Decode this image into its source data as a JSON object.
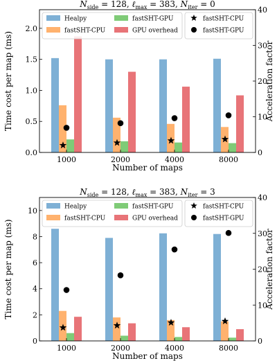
{
  "colors": {
    "Healpy": "#7eb0d5",
    "fastSHT-CPU": "#ffb26e",
    "fastSHT-GPU": "#7fcb77",
    "GPU overhead": "#e87478",
    "marker": "#000000"
  },
  "chart_data": [
    {
      "type": "bar",
      "title": "N_side = 128, ℓ_max = 383, N_iter = 0",
      "title_parts": {
        "n_side": "N",
        "n_side_sub": "side",
        "n_side_val": " = 128, ",
        "l": "ℓ",
        "l_sub": "max",
        "l_val": " = 383, ",
        "n_iter": "N",
        "n_iter_sub": "iter",
        "n_iter_val": " = 0"
      },
      "xlabel": "Number of maps",
      "ylabel": "Time cost per map (ms)",
      "ylabel_right": "Acceleration factor",
      "categories": [
        "1000",
        "2000",
        "4000",
        "8000"
      ],
      "ylim": [
        0,
        2.3
      ],
      "yticks": [
        "0.0",
        "0.5",
        "1.0",
        "1.5",
        "2.0"
      ],
      "ylim_right": [
        0,
        40
      ],
      "yticks_right": [
        "0",
        "10",
        "20",
        "30",
        "40"
      ],
      "series": [
        {
          "name": "Healpy",
          "values": [
            1.52,
            1.5,
            1.5,
            1.51
          ]
        },
        {
          "name": "fastSHT-CPU",
          "values": [
            0.76,
            0.56,
            0.46,
            0.41
          ]
        },
        {
          "name": "fastSHT-GPU",
          "values": [
            0.21,
            0.18,
            0.16,
            0.15
          ]
        },
        {
          "name": "GPU overhead",
          "values": [
            1.87,
            1.3,
            1.06,
            0.92
          ]
        }
      ],
      "markers": [
        {
          "name": "fastSHT-CPU",
          "symbol": "★",
          "values": [
            2.0,
            2.7,
            3.3,
            3.7
          ]
        },
        {
          "name": "fastSHT-GPU",
          "symbol": "●",
          "values": [
            6.9,
            8.2,
            9.6,
            10.4
          ]
        }
      ]
    },
    {
      "type": "bar",
      "title": "N_side = 128, ℓ_max = 383, N_iter = 3",
      "title_parts": {
        "n_side": "N",
        "n_side_sub": "side",
        "n_side_val": " = 128, ",
        "l": "ℓ",
        "l_sub": "max",
        "l_val": " = 383, ",
        "n_iter": "N",
        "n_iter_sub": "iter",
        "n_iter_val": " = 3"
      },
      "xlabel": "Number of maps",
      "ylabel": "Time cost per map (ms)",
      "ylabel_right": "Acceleration factor",
      "categories": [
        "1000",
        "2000",
        "4000",
        "8000"
      ],
      "ylim": [
        0,
        11
      ],
      "yticks": [
        "0",
        "2",
        "4",
        "6",
        "8",
        "10"
      ],
      "ylim_right": [
        0,
        40
      ],
      "yticks_right": [
        "0",
        "10",
        "20",
        "30",
        "40"
      ],
      "series": [
        {
          "name": "Healpy",
          "values": [
            8.6,
            7.9,
            8.25,
            8.2
          ]
        },
        {
          "name": "fastSHT-CPU",
          "values": [
            2.3,
            1.8,
            1.6,
            1.5
          ]
        },
        {
          "name": "fastSHT-GPU",
          "values": [
            0.6,
            0.4,
            0.3,
            0.25
          ]
        },
        {
          "name": "GPU overhead",
          "values": [
            1.85,
            1.35,
            1.05,
            0.9
          ]
        }
      ],
      "markers": [
        {
          "name": "fastSHT-CPU",
          "symbol": "★",
          "values": [
            3.7,
            4.3,
            5.1,
            5.5
          ]
        },
        {
          "name": "fastSHT-GPU",
          "symbol": "●",
          "values": [
            14.2,
            18.3,
            25.5,
            30.1
          ]
        }
      ]
    }
  ]
}
